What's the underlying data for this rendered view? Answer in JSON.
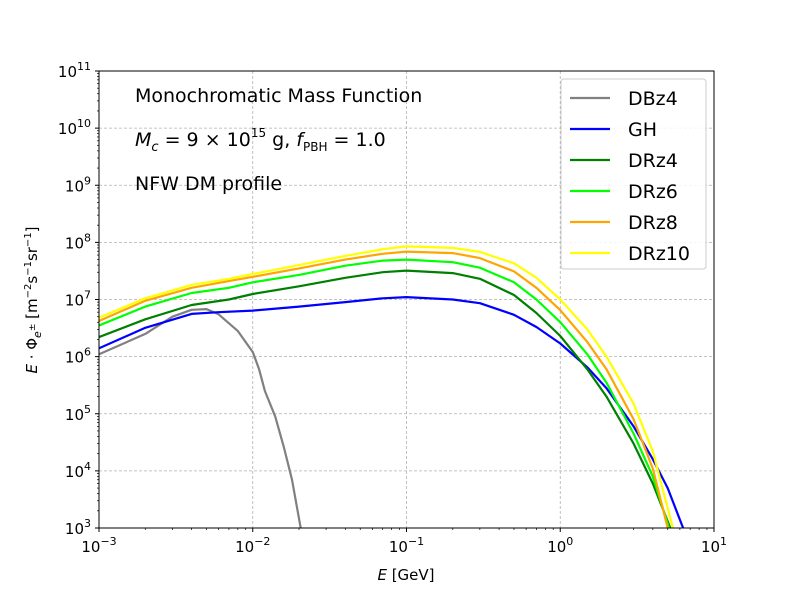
{
  "chart_data": {
    "type": "line",
    "xscale": "log",
    "yscale": "log",
    "xlim": [
      0.001,
      10
    ],
    "ylim": [
      1000,
      100000000000
    ],
    "xlabel": "E [GeV]",
    "ylabel": "E · Φe± [m⁻² s⁻¹ sr⁻¹]",
    "grid": true,
    "legend_position": "top-right",
    "x_ticks": [
      {
        "value": 0.001,
        "base": "10",
        "exp": "−3"
      },
      {
        "value": 0.01,
        "base": "10",
        "exp": "−2"
      },
      {
        "value": 0.1,
        "base": "10",
        "exp": "−1"
      },
      {
        "value": 1,
        "base": "10",
        "exp": "0"
      },
      {
        "value": 10,
        "base": "10",
        "exp": "1"
      }
    ],
    "y_ticks": [
      {
        "value": 1000,
        "base": "10",
        "exp": "3"
      },
      {
        "value": 10000,
        "base": "10",
        "exp": "4"
      },
      {
        "value": 100000,
        "base": "10",
        "exp": "5"
      },
      {
        "value": 1000000,
        "base": "10",
        "exp": "6"
      },
      {
        "value": 10000000,
        "base": "10",
        "exp": "7"
      },
      {
        "value": 100000000,
        "base": "10",
        "exp": "8"
      },
      {
        "value": 1000000000,
        "base": "10",
        "exp": "9"
      },
      {
        "value": 10000000000,
        "base": "10",
        "exp": "10"
      },
      {
        "value": 100000000000,
        "base": "10",
        "exp": "11"
      }
    ],
    "annotations": {
      "title_line": "Monochromatic Mass Function",
      "mass_line": "M_c = 9 × 10^15 g, f_PBH = 1.0",
      "profile_line": "NFW DM profile"
    },
    "series": [
      {
        "name": "DBz4",
        "color": "#808080",
        "points": [
          [
            0.001,
            1100000.0
          ],
          [
            0.002,
            2500000.0
          ],
          [
            0.003,
            5000000.0
          ],
          [
            0.004,
            6600000.0
          ],
          [
            0.005,
            6800000.0
          ],
          [
            0.006,
            5500000.0
          ],
          [
            0.008,
            2800000.0
          ],
          [
            0.01,
            1200000.0
          ],
          [
            0.011,
            600000.0
          ],
          [
            0.012,
            250000.0
          ],
          [
            0.014,
            90000.0
          ],
          [
            0.016,
            25000.0
          ],
          [
            0.018,
            7000
          ],
          [
            0.0205,
            1000
          ]
        ]
      },
      {
        "name": "GH",
        "color": "#0000ff",
        "points": [
          [
            0.001,
            1400000.0
          ],
          [
            0.002,
            3200000.0
          ],
          [
            0.004,
            5600000.0
          ],
          [
            0.006,
            6000000.0
          ],
          [
            0.01,
            6400000.0
          ],
          [
            0.02,
            7500000.0
          ],
          [
            0.04,
            9000000.0
          ],
          [
            0.07,
            10500000.0
          ],
          [
            0.1,
            11000000.0
          ],
          [
            0.2,
            10000000.0
          ],
          [
            0.3,
            8600000.0
          ],
          [
            0.5,
            5400000.0
          ],
          [
            0.7,
            3300000.0
          ],
          [
            1.0,
            1700000.0
          ],
          [
            1.5,
            650000.0
          ],
          [
            2.0,
            280000.0
          ],
          [
            3.0,
            60000.0
          ],
          [
            4.0,
            16000.0
          ],
          [
            5.0,
            5000
          ],
          [
            6.3,
            1000
          ]
        ]
      },
      {
        "name": "DRz4",
        "color": "#008000",
        "points": [
          [
            0.001,
            2200000.0
          ],
          [
            0.002,
            4500000.0
          ],
          [
            0.004,
            8000000.0
          ],
          [
            0.007,
            10000000.0
          ],
          [
            0.01,
            12500000.0
          ],
          [
            0.02,
            17000000.0
          ],
          [
            0.04,
            24000000.0
          ],
          [
            0.07,
            30000000.0
          ],
          [
            0.1,
            32000000.0
          ],
          [
            0.2,
            29000000.0
          ],
          [
            0.3,
            23000000.0
          ],
          [
            0.5,
            12000000.0
          ],
          [
            0.7,
            5800000.0
          ],
          [
            1.0,
            2300000.0
          ],
          [
            1.5,
            600000.0
          ],
          [
            2.0,
            200000.0
          ],
          [
            3.0,
            30000.0
          ],
          [
            4.0,
            6000
          ],
          [
            5.2,
            1000
          ]
        ]
      },
      {
        "name": "DRz6",
        "color": "#00ff00",
        "points": [
          [
            0.001,
            3500000.0
          ],
          [
            0.002,
            7500000.0
          ],
          [
            0.004,
            13000000.0
          ],
          [
            0.007,
            16000000.0
          ],
          [
            0.01,
            20000000.0
          ],
          [
            0.02,
            27000000.0
          ],
          [
            0.04,
            39000000.0
          ],
          [
            0.07,
            48000000.0
          ],
          [
            0.1,
            50000000.0
          ],
          [
            0.2,
            45000000.0
          ],
          [
            0.3,
            36000000.0
          ],
          [
            0.5,
            20000000.0
          ],
          [
            0.7,
            10000000.0
          ],
          [
            1.0,
            4000000.0
          ],
          [
            1.5,
            1100000.0
          ],
          [
            2.0,
            350000.0
          ],
          [
            3.0,
            45000.0
          ],
          [
            4.0,
            8000
          ],
          [
            5.1,
            1000
          ]
        ]
      },
      {
        "name": "DRz8",
        "color": "#ffa500",
        "points": [
          [
            0.001,
            4200000.0
          ],
          [
            0.002,
            9500000.0
          ],
          [
            0.004,
            16000000.0
          ],
          [
            0.007,
            21000000.0
          ],
          [
            0.01,
            25000000.0
          ],
          [
            0.02,
            35000000.0
          ],
          [
            0.04,
            50000000.0
          ],
          [
            0.07,
            63000000.0
          ],
          [
            0.1,
            69000000.0
          ],
          [
            0.2,
            65000000.0
          ],
          [
            0.3,
            53000000.0
          ],
          [
            0.5,
            31000000.0
          ],
          [
            0.7,
            16000000.0
          ],
          [
            1.0,
            6500000.0
          ],
          [
            1.5,
            1800000.0
          ],
          [
            2.0,
            600000.0
          ],
          [
            3.0,
            80000.0
          ],
          [
            4.0,
            11000.0
          ],
          [
            5.0,
            1000
          ]
        ]
      },
      {
        "name": "DRz10",
        "color": "#ffff00",
        "points": [
          [
            0.001,
            4800000.0
          ],
          [
            0.002,
            10500000.0
          ],
          [
            0.004,
            18000000.0
          ],
          [
            0.007,
            23000000.0
          ],
          [
            0.01,
            28000000.0
          ],
          [
            0.02,
            40000000.0
          ],
          [
            0.04,
            58000000.0
          ],
          [
            0.07,
            76000000.0
          ],
          [
            0.1,
            85000000.0
          ],
          [
            0.2,
            80000000.0
          ],
          [
            0.3,
            68000000.0
          ],
          [
            0.5,
            43000000.0
          ],
          [
            0.7,
            24000000.0
          ],
          [
            1.0,
            10000000.0
          ],
          [
            1.5,
            3000000.0
          ],
          [
            2.0,
            1000000.0
          ],
          [
            3.0,
            150000.0
          ],
          [
            4.0,
            22000.0
          ],
          [
            5.4,
            1000
          ]
        ]
      }
    ]
  }
}
